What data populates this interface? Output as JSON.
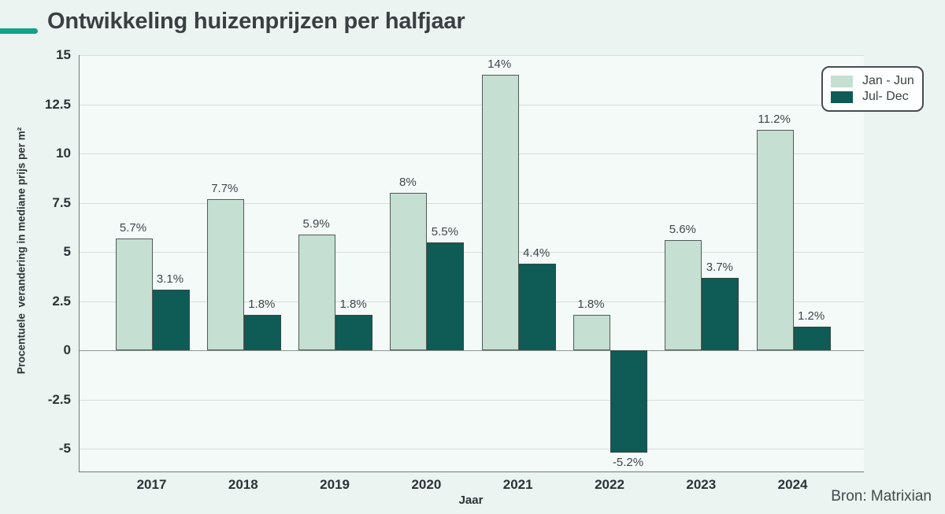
{
  "title": "Ontwikkeling huizenprijzen per halfjaar",
  "source": {
    "text": "Bron: Matrixian"
  },
  "colors": {
    "accent_dash": "#12a38a",
    "page_background": "#ebf4f0",
    "plot_background": "#f4faf8",
    "gridline": "#d6dddb",
    "zero_line": "#8d9793",
    "spine": "#707b78",
    "series_light": "#c5dfd2",
    "series_light_border": "#4f5b57",
    "series_dark": "#0f5b55",
    "series_dark_border": "#2f4a46"
  },
  "legend": {
    "items": [
      {
        "label": "Jan - Jun",
        "color": "#c5dfd2"
      },
      {
        "label": "Jul- Dec",
        "color": "#0f5b55"
      }
    ]
  },
  "chart_data": {
    "type": "bar",
    "title": "Ontwikkeling huizenprijzen per halfjaar",
    "xlabel": "Jaar",
    "ylabel": "Procentuele  verandering in mediane prijs per m²",
    "categories": [
      "2017",
      "2018",
      "2019",
      "2020",
      "2021",
      "2022",
      "2023",
      "2024"
    ],
    "series": [
      {
        "name": "Jan - Jun",
        "color": "#c5dfd2",
        "values": [
          5.7,
          7.7,
          5.9,
          8,
          14,
          1.8,
          5.6,
          11.2
        ],
        "labels": [
          "5.7%",
          "7.7%",
          "5.9%",
          "8%",
          "14%",
          "1.8%",
          "5.6%",
          "11.2%"
        ]
      },
      {
        "name": "Jul- Dec",
        "color": "#0f5b55",
        "values": [
          3.1,
          1.8,
          1.8,
          5.5,
          4.4,
          -5.2,
          3.7,
          1.2
        ],
        "labels": [
          "3.1%",
          "1.8%",
          "1.8%",
          "5.5%",
          "4.4%",
          "-5.2%",
          "3.7%",
          "1.2%"
        ]
      }
    ],
    "yticks": [
      15,
      12.5,
      10,
      7.5,
      5,
      2.5,
      0,
      -2.5,
      -5
    ],
    "ylim": [
      -6.2,
      15
    ],
    "grid": true,
    "legend_position": "top-right"
  }
}
